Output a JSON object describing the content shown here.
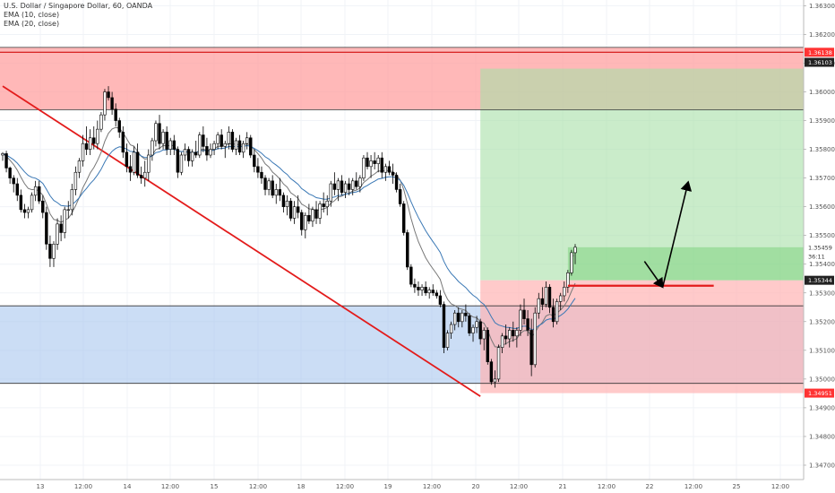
{
  "header": {
    "title": "U.S. Dollar / Singapore Dollar, 60, OANDA",
    "indicators": [
      "EMA (10, close)",
      "EMA (20, close)"
    ]
  },
  "colors": {
    "up": "#ffffff",
    "down": "#000000",
    "ema10": "#777777",
    "ema20": "#3a78b5",
    "trendline": "#e31b1b",
    "resistance_zone": "#ff9a9a",
    "support_zone": "#a9c6ef",
    "target_zone": "#a6dfa6",
    "stop_zone": "#ffb3b3",
    "price_tag_red": "#f33",
    "price_tag_dark": "#222"
  },
  "chart_data": {
    "type": "candlestick",
    "y_axis": {
      "range": [
        1.3465,
        1.3632
      ],
      "ticks": [
        "1.36300",
        "1.36200",
        "1.36100",
        "1.36000",
        "1.35900",
        "1.35800",
        "1.35700",
        "1.35600",
        "1.35500",
        "1.35400",
        "1.35300",
        "1.35200",
        "1.35100",
        "1.35000",
        "1.34900",
        "1.34800",
        "1.34700"
      ]
    },
    "x_axis": {
      "labels": [
        "13",
        "12:00",
        "14",
        "12:00",
        "15",
        "12:00",
        "18",
        "12:00",
        "19",
        "12:00",
        "20",
        "12:00",
        "21",
        "12:00",
        "22",
        "12:00",
        "25",
        "12:00"
      ]
    },
    "price_tags": [
      {
        "label": "1.36138",
        "value": 1.36138,
        "style": "red"
      },
      {
        "label": "1.36103",
        "value": 1.36103,
        "style": "dark"
      },
      {
        "label": "1.35459",
        "value": 1.35459,
        "style": "plain"
      },
      {
        "label": "36:11",
        "value": 1.35428,
        "style": "plain"
      },
      {
        "label": "1.35344",
        "value": 1.35344,
        "style": "dark"
      },
      {
        "label": "1.34951",
        "value": 1.34951,
        "style": "red"
      }
    ],
    "zones": [
      {
        "name": "resistance",
        "top": 1.36155,
        "bottom": 1.35938
      },
      {
        "name": "support",
        "top": 1.35255,
        "bottom": 1.34985
      }
    ],
    "horizontal_lines": [
      1.36155,
      1.36138,
      1.35938,
      1.35255,
      1.34985
    ],
    "trendline": {
      "from": {
        "bar": 0,
        "price": 1.3602
      },
      "to": {
        "bar": 131,
        "price": 1.3494
      }
    },
    "position": {
      "entry": 1.35344,
      "target": 1.36081,
      "stop": 1.34951,
      "start_bar": 131,
      "end_bar": 232
    },
    "entry_level_line": {
      "price": 1.35325,
      "from_bar": 155,
      "to_bar": 195
    },
    "arrows": [
      {
        "from": {
          "bar": 176,
          "price": 1.3541
        },
        "to": {
          "bar": 181,
          "price": 1.3532
        }
      },
      {
        "from": {
          "bar": 181,
          "price": 1.3532
        },
        "to": {
          "bar": 188,
          "price": 1.35686
        }
      }
    ],
    "candles": [
      [
        1.3578,
        1.3579,
        1.3576,
        1.35785
      ],
      [
        1.35785,
        1.35795,
        1.3572,
        1.35735
      ],
      [
        1.35735,
        1.3574,
        1.3568,
        1.357
      ],
      [
        1.357,
        1.3571,
        1.3565,
        1.3568
      ],
      [
        1.3568,
        1.357,
        1.3562,
        1.3564
      ],
      [
        1.3564,
        1.3566,
        1.3558,
        1.3559
      ],
      [
        1.3559,
        1.3561,
        1.3556,
        1.3558
      ],
      [
        1.3558,
        1.356,
        1.3556,
        1.3559
      ],
      [
        1.3559,
        1.3565,
        1.3558,
        1.3564
      ],
      [
        1.3564,
        1.3569,
        1.3562,
        1.3567
      ],
      [
        1.3567,
        1.3569,
        1.3561,
        1.3562
      ],
      [
        1.3562,
        1.3564,
        1.3556,
        1.3558
      ],
      [
        1.3558,
        1.356,
        1.3545,
        1.3547
      ],
      [
        1.3547,
        1.355,
        1.3539,
        1.3542
      ],
      [
        1.3542,
        1.3548,
        1.3539,
        1.3547
      ],
      [
        1.3547,
        1.3556,
        1.3545,
        1.3554
      ],
      [
        1.3554,
        1.3557,
        1.3548,
        1.3551
      ],
      [
        1.3551,
        1.356,
        1.3549,
        1.3559
      ],
      [
        1.3559,
        1.3562,
        1.3556,
        1.3559
      ],
      [
        1.3559,
        1.3568,
        1.3557,
        1.3566
      ],
      [
        1.3566,
        1.3574,
        1.3564,
        1.3572
      ],
      [
        1.3572,
        1.3577,
        1.357,
        1.3576
      ],
      [
        1.3576,
        1.3585,
        1.3574,
        1.3582
      ],
      [
        1.3582,
        1.3588,
        1.3578,
        1.358
      ],
      [
        1.358,
        1.3587,
        1.3578,
        1.3584
      ],
      [
        1.3584,
        1.3588,
        1.358,
        1.3582
      ],
      [
        1.3582,
        1.359,
        1.358,
        1.3587
      ],
      [
        1.3587,
        1.3593,
        1.3586,
        1.3592
      ],
      [
        1.3592,
        1.3601,
        1.359,
        1.36
      ],
      [
        1.36,
        1.3602,
        1.3597,
        1.3598
      ],
      [
        1.3598,
        1.36,
        1.3592,
        1.3594
      ],
      [
        1.3594,
        1.3596,
        1.3588,
        1.359
      ],
      [
        1.359,
        1.3591,
        1.3584,
        1.3586
      ],
      [
        1.3586,
        1.3588,
        1.3577,
        1.3579
      ],
      [
        1.3579,
        1.3582,
        1.3572,
        1.3574
      ],
      [
        1.3574,
        1.3578,
        1.3569,
        1.3572
      ],
      [
        1.3572,
        1.3581,
        1.3571,
        1.3579
      ],
      [
        1.3579,
        1.3582,
        1.357,
        1.3571
      ],
      [
        1.3571,
        1.3574,
        1.3568,
        1.357
      ],
      [
        1.357,
        1.3576,
        1.3567,
        1.3572
      ],
      [
        1.3572,
        1.358,
        1.3569,
        1.3578
      ],
      [
        1.3578,
        1.3584,
        1.3576,
        1.3583
      ],
      [
        1.3583,
        1.359,
        1.3581,
        1.3589
      ],
      [
        1.3589,
        1.3592,
        1.358,
        1.3582
      ],
      [
        1.3582,
        1.3587,
        1.358,
        1.3586
      ],
      [
        1.3586,
        1.3588,
        1.3578,
        1.358
      ],
      [
        1.358,
        1.3584,
        1.3578,
        1.3583
      ],
      [
        1.3583,
        1.3585,
        1.3578,
        1.358
      ],
      [
        1.358,
        1.3581,
        1.357,
        1.3572
      ],
      [
        1.3572,
        1.3579,
        1.3571,
        1.3578
      ],
      [
        1.3578,
        1.3582,
        1.3576,
        1.358
      ],
      [
        1.358,
        1.3581,
        1.3574,
        1.3576
      ],
      [
        1.3576,
        1.358,
        1.3574,
        1.3579
      ],
      [
        1.3579,
        1.3583,
        1.3577,
        1.3578
      ],
      [
        1.3578,
        1.3586,
        1.3577,
        1.3585
      ],
      [
        1.3585,
        1.3588,
        1.3579,
        1.3581
      ],
      [
        1.3581,
        1.3584,
        1.3576,
        1.3578
      ],
      [
        1.3578,
        1.3582,
        1.3577,
        1.358
      ],
      [
        1.358,
        1.3583,
        1.3578,
        1.3582
      ],
      [
        1.3582,
        1.3586,
        1.358,
        1.3585
      ],
      [
        1.3585,
        1.3587,
        1.358,
        1.3581
      ],
      [
        1.3581,
        1.3583,
        1.3577,
        1.3582
      ],
      [
        1.3582,
        1.3588,
        1.358,
        1.3586
      ],
      [
        1.3586,
        1.3587,
        1.3579,
        1.358
      ],
      [
        1.358,
        1.3584,
        1.3578,
        1.3583
      ],
      [
        1.3583,
        1.3585,
        1.3578,
        1.3579
      ],
      [
        1.3579,
        1.3583,
        1.3577,
        1.3582
      ],
      [
        1.3582,
        1.3586,
        1.358,
        1.3584
      ],
      [
        1.3584,
        1.3585,
        1.3577,
        1.3578
      ],
      [
        1.3578,
        1.358,
        1.3572,
        1.3574
      ],
      [
        1.3574,
        1.3577,
        1.357,
        1.3572
      ],
      [
        1.3572,
        1.3574,
        1.3568,
        1.357
      ],
      [
        1.357,
        1.3571,
        1.3564,
        1.3566
      ],
      [
        1.3566,
        1.357,
        1.3564,
        1.3569
      ],
      [
        1.3569,
        1.3571,
        1.3563,
        1.3564
      ],
      [
        1.3564,
        1.3568,
        1.3561,
        1.3566
      ],
      [
        1.3566,
        1.357,
        1.3562,
        1.3564
      ],
      [
        1.3564,
        1.3565,
        1.3558,
        1.356
      ],
      [
        1.356,
        1.3564,
        1.3557,
        1.3562
      ],
      [
        1.3562,
        1.3563,
        1.3555,
        1.3556
      ],
      [
        1.3556,
        1.3562,
        1.3554,
        1.356
      ],
      [
        1.356,
        1.3564,
        1.3556,
        1.3558
      ],
      [
        1.3558,
        1.3559,
        1.355,
        1.3552
      ],
      [
        1.3552,
        1.3558,
        1.3549,
        1.3557
      ],
      [
        1.3557,
        1.3561,
        1.3554,
        1.3555
      ],
      [
        1.3555,
        1.356,
        1.3553,
        1.3559
      ],
      [
        1.3559,
        1.3562,
        1.3554,
        1.3556
      ],
      [
        1.3556,
        1.3562,
        1.3554,
        1.3561
      ],
      [
        1.3561,
        1.3565,
        1.3558,
        1.356
      ],
      [
        1.356,
        1.3564,
        1.3557,
        1.3562
      ],
      [
        1.3562,
        1.3569,
        1.356,
        1.3568
      ],
      [
        1.3568,
        1.3572,
        1.3564,
        1.3566
      ],
      [
        1.3566,
        1.357,
        1.3562,
        1.3569
      ],
      [
        1.3569,
        1.3571,
        1.3564,
        1.3565
      ],
      [
        1.3565,
        1.3569,
        1.3563,
        1.3568
      ],
      [
        1.3568,
        1.357,
        1.3564,
        1.3566
      ],
      [
        1.3566,
        1.357,
        1.3564,
        1.3569
      ],
      [
        1.3569,
        1.3572,
        1.3566,
        1.3567
      ],
      [
        1.3567,
        1.3571,
        1.3565,
        1.357
      ],
      [
        1.357,
        1.3578,
        1.3569,
        1.3577
      ],
      [
        1.3577,
        1.3579,
        1.3573,
        1.3574
      ],
      [
        1.3574,
        1.3578,
        1.357,
        1.3576
      ],
      [
        1.3576,
        1.3579,
        1.3573,
        1.3575
      ],
      [
        1.3575,
        1.3578,
        1.3572,
        1.3577
      ],
      [
        1.3577,
        1.3579,
        1.357,
        1.3572
      ],
      [
        1.3572,
        1.3575,
        1.3569,
        1.3574
      ],
      [
        1.3574,
        1.3576,
        1.3571,
        1.3572
      ],
      [
        1.3572,
        1.3575,
        1.3568,
        1.3571
      ],
      [
        1.3571,
        1.3572,
        1.3565,
        1.3566
      ],
      [
        1.3566,
        1.3568,
        1.356,
        1.3561
      ],
      [
        1.3561,
        1.3562,
        1.355,
        1.3551
      ],
      [
        1.3551,
        1.3552,
        1.3538,
        1.3539
      ],
      [
        1.3539,
        1.354,
        1.3532,
        1.3533
      ],
      [
        1.3533,
        1.3535,
        1.353,
        1.3532
      ],
      [
        1.3532,
        1.3534,
        1.3529,
        1.3531
      ],
      [
        1.3531,
        1.3533,
        1.3529,
        1.3532
      ],
      [
        1.3532,
        1.3534,
        1.3529,
        1.353
      ],
      [
        1.353,
        1.3532,
        1.3528,
        1.3531
      ],
      [
        1.3531,
        1.3533,
        1.3529,
        1.353
      ],
      [
        1.353,
        1.3531,
        1.3528,
        1.3529
      ],
      [
        1.3529,
        1.3531,
        1.3525,
        1.3526
      ],
      [
        1.3526,
        1.3527,
        1.3509,
        1.3511
      ],
      [
        1.3511,
        1.3517,
        1.351,
        1.3516
      ],
      [
        1.3516,
        1.352,
        1.3514,
        1.3519
      ],
      [
        1.3519,
        1.3524,
        1.3517,
        1.3523
      ],
      [
        1.3523,
        1.3525,
        1.3518,
        1.352
      ],
      [
        1.352,
        1.3524,
        1.3518,
        1.3523
      ],
      [
        1.3523,
        1.3526,
        1.352,
        1.3522
      ],
      [
        1.3522,
        1.3523,
        1.3515,
        1.3516
      ],
      [
        1.3516,
        1.3519,
        1.3513,
        1.3518
      ],
      [
        1.3518,
        1.3522,
        1.3516,
        1.352
      ],
      [
        1.352,
        1.3521,
        1.3512,
        1.3514
      ],
      [
        1.3514,
        1.3518,
        1.351,
        1.3517
      ],
      [
        1.3517,
        1.3518,
        1.3505,
        1.3506
      ],
      [
        1.3506,
        1.3507,
        1.3498,
        1.3499
      ],
      [
        1.3499,
        1.3503,
        1.3497,
        1.35
      ],
      [
        1.35,
        1.3512,
        1.3499,
        1.3511
      ],
      [
        1.3511,
        1.3516,
        1.3509,
        1.3515
      ],
      [
        1.3515,
        1.3519,
        1.3512,
        1.3514
      ],
      [
        1.3514,
        1.3518,
        1.3511,
        1.3517
      ],
      [
        1.3517,
        1.352,
        1.3513,
        1.3515
      ],
      [
        1.3515,
        1.3518,
        1.3511,
        1.3517
      ],
      [
        1.3517,
        1.3526,
        1.3515,
        1.3524
      ],
      [
        1.3524,
        1.3528,
        1.3519,
        1.3521
      ],
      [
        1.3521,
        1.3524,
        1.3515,
        1.3517
      ],
      [
        1.3517,
        1.3521,
        1.3501,
        1.3505
      ],
      [
        1.3505,
        1.3525,
        1.3504,
        1.3523
      ],
      [
        1.3523,
        1.353,
        1.3521,
        1.3528
      ],
      [
        1.3528,
        1.3532,
        1.3524,
        1.3526
      ],
      [
        1.3526,
        1.3534,
        1.3525,
        1.3532
      ],
      [
        1.3532,
        1.3533,
        1.3523,
        1.3525
      ],
      [
        1.3525,
        1.3528,
        1.3518,
        1.352
      ],
      [
        1.352,
        1.3528,
        1.3519,
        1.3527
      ],
      [
        1.3527,
        1.353,
        1.3524,
        1.3529
      ],
      [
        1.3529,
        1.3534,
        1.3527,
        1.3532
      ],
      [
        1.3532,
        1.3538,
        1.353,
        1.3537
      ],
      [
        1.3537,
        1.3545,
        1.3536,
        1.3544
      ],
      [
        1.3544,
        1.3547,
        1.354,
        1.35459
      ]
    ]
  }
}
